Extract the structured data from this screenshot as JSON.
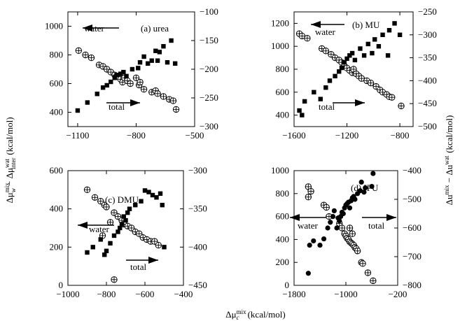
{
  "figure": {
    "xlabel": "Δμ",
    "xlabel_sup": "mix",
    "xlabel_sub": "c",
    "xlabel_units": "(kcal/mol)",
    "ylabel_left": "Δμ",
    "ylabel_left_sup1": "mix",
    "ylabel_left_sub1": "w",
    "ylabel_left_mid": " − Δμ",
    "ylabel_left_sup2": "wat",
    "ylabel_left_sub2": "inter",
    "ylabel_left_units": "(kcal/mol)",
    "ylabel_right": "Δu",
    "ylabel_right_sup1": "mix",
    "ylabel_right_mid": " − Δu",
    "ylabel_right_sup2": "wat",
    "ylabel_right_units": "(kcal/mol)"
  },
  "chart_data": [
    {
      "type": "scatter",
      "panel_label": "(a) urea",
      "xlim": [
        -1150,
        -500
      ],
      "xticks": [
        -1100,
        -800,
        -500
      ],
      "ylim_left": [
        300,
        1100
      ],
      "yticks_left": [
        400,
        600,
        800,
        1000
      ],
      "ylim_right": [
        -300,
        -100
      ],
      "yticks_right": [
        -300,
        -250,
        -200,
        -150,
        -100
      ],
      "water_label": "water",
      "water_arrow": "left",
      "total_label": "total",
      "total_arrow": "right",
      "series": [
        {
          "marker": "circle-cross",
          "axis": "left",
          "points": [
            [
              -1095,
              830
            ],
            [
              -1060,
              800
            ],
            [
              -1030,
              780
            ],
            [
              -990,
              730
            ],
            [
              -970,
              720
            ],
            [
              -950,
              700
            ],
            [
              -930,
              680
            ],
            [
              -910,
              660
            ],
            [
              -900,
              650
            ],
            [
              -880,
              630
            ],
            [
              -870,
              610
            ],
            [
              -860,
              640
            ],
            [
              -845,
              620
            ],
            [
              -830,
              600
            ],
            [
              -800,
              640
            ],
            [
              -785,
              590
            ],
            [
              -780,
              610
            ],
            [
              -760,
              560
            ],
            [
              -720,
              540
            ],
            [
              -700,
              550
            ],
            [
              -690,
              530
            ],
            [
              -660,
              510
            ],
            [
              -630,
              490
            ],
            [
              -610,
              480
            ],
            [
              -595,
              420
            ]
          ]
        },
        {
          "marker": "filled-square",
          "axis": "right",
          "points": [
            [
              -1100,
              -272
            ],
            [
              -1050,
              -258
            ],
            [
              -1000,
              -243
            ],
            [
              -970,
              -232
            ],
            [
              -950,
              -228
            ],
            [
              -930,
              -222
            ],
            [
              -910,
              -215
            ],
            [
              -900,
              -210
            ],
            [
              -880,
              -208
            ],
            [
              -865,
              -205
            ],
            [
              -850,
              -212
            ],
            [
              -820,
              -200
            ],
            [
              -790,
              -198
            ],
            [
              -780,
              -188
            ],
            [
              -760,
              -178
            ],
            [
              -740,
              -190
            ],
            [
              -720,
              -185
            ],
            [
              -700,
              -168
            ],
            [
              -690,
              -185
            ],
            [
              -680,
              -170
            ],
            [
              -660,
              -160
            ],
            [
              -640,
              -188
            ],
            [
              -620,
              -150
            ],
            [
              -600,
              -190
            ]
          ]
        }
      ]
    },
    {
      "type": "scatter",
      "panel_label": "(b) MU",
      "xlim": [
        -1600,
        -700
      ],
      "xticks": [
        -1600,
        -1200,
        -800
      ],
      "ylim_left": [
        300,
        1300
      ],
      "yticks_left": [
        400,
        600,
        800,
        1000,
        1200
      ],
      "ylim_right": [
        -500,
        -250
      ],
      "yticks_right": [
        -500,
        -450,
        -400,
        -350,
        -300,
        -250
      ],
      "water_label": "water",
      "water_arrow": "left",
      "total_label": "total",
      "total_arrow": "right",
      "series": [
        {
          "marker": "circle-cross",
          "axis": "left",
          "points": [
            [
              -1560,
              1110
            ],
            [
              -1540,
              1090
            ],
            [
              -1500,
              1070
            ],
            [
              -1390,
              980
            ],
            [
              -1360,
              960
            ],
            [
              -1320,
              930
            ],
            [
              -1290,
              900
            ],
            [
              -1260,
              880
            ],
            [
              -1240,
              860
            ],
            [
              -1220,
              830
            ],
            [
              -1200,
              810
            ],
            [
              -1180,
              790
            ],
            [
              -1160,
              770
            ],
            [
              -1150,
              800
            ],
            [
              -1130,
              760
            ],
            [
              -1110,
              740
            ],
            [
              -1090,
              720
            ],
            [
              -1050,
              700
            ],
            [
              -1020,
              680
            ],
            [
              -980,
              650
            ],
            [
              -950,
              620
            ],
            [
              -930,
              600
            ],
            [
              -900,
              580
            ],
            [
              -880,
              560
            ],
            [
              -860,
              555
            ],
            [
              -790,
              480
            ]
          ]
        },
        {
          "marker": "filled-square",
          "axis": "right",
          "points": [
            [
              -1560,
              -465
            ],
            [
              -1540,
              -475
            ],
            [
              -1520,
              -445
            ],
            [
              -1450,
              -425
            ],
            [
              -1400,
              -440
            ],
            [
              -1360,
              -415
            ],
            [
              -1330,
              -400
            ],
            [
              -1290,
              -390
            ],
            [
              -1260,
              -380
            ],
            [
              -1240,
              -372
            ],
            [
              -1220,
              -360
            ],
            [
              -1200,
              -352
            ],
            [
              -1180,
              -345
            ],
            [
              -1160,
              -340
            ],
            [
              -1140,
              -355
            ],
            [
              -1100,
              -330
            ],
            [
              -1070,
              -345
            ],
            [
              -1040,
              -320
            ],
            [
              -1010,
              -340
            ],
            [
              -990,
              -310
            ],
            [
              -960,
              -325
            ],
            [
              -930,
              -300
            ],
            [
              -890,
              -345
            ],
            [
              -880,
              -290
            ],
            [
              -840,
              -275
            ],
            [
              -800,
              -300
            ]
          ]
        }
      ]
    },
    {
      "type": "scatter",
      "panel_label": "(c) DMU",
      "xlim": [
        -1000,
        -400
      ],
      "xticks": [
        -1000,
        -800,
        -600,
        -400
      ],
      "ylim_left": [
        0,
        600
      ],
      "yticks_left": [
        0,
        200,
        400,
        600
      ],
      "ylim_right": [
        -450,
        -300
      ],
      "yticks_right": [
        -450,
        -400,
        -350,
        -300
      ],
      "water_label": "water",
      "water_arrow": "left",
      "total_label": "total",
      "total_arrow": "right",
      "series": [
        {
          "marker": "circle-cross",
          "axis": "left",
          "points": [
            [
              -900,
              500
            ],
            [
              -860,
              460
            ],
            [
              -830,
              440
            ],
            [
              -810,
              420
            ],
            [
              -800,
              410
            ],
            [
              -760,
              380
            ],
            [
              -740,
              360
            ],
            [
              -720,
              340
            ],
            [
              -710,
              320
            ],
            [
              -690,
              310
            ],
            [
              -670,
              300
            ],
            [
              -650,
              280
            ],
            [
              -630,
              270
            ],
            [
              -610,
              250
            ],
            [
              -590,
              240
            ],
            [
              -570,
              230
            ],
            [
              -550,
              230
            ],
            [
              -530,
              210
            ],
            [
              -820,
              260
            ],
            [
              -780,
              330
            ],
            [
              -760,
              30
            ]
          ]
        },
        {
          "marker": "filled-square",
          "axis": "right",
          "points": [
            [
              -900,
              -407
            ],
            [
              -870,
              -400
            ],
            [
              -830,
              -390
            ],
            [
              -810,
              -410
            ],
            [
              -800,
              -405
            ],
            [
              -780,
              -395
            ],
            [
              -760,
              -385
            ],
            [
              -740,
              -380
            ],
            [
              -730,
              -375
            ],
            [
              -720,
              -370
            ],
            [
              -710,
              -360
            ],
            [
              -700,
              -365
            ],
            [
              -690,
              -355
            ],
            [
              -680,
              -350
            ],
            [
              -650,
              -345
            ],
            [
              -620,
              -340
            ],
            [
              -600,
              -326
            ],
            [
              -580,
              -328
            ],
            [
              -560,
              -332
            ],
            [
              -540,
              -335
            ],
            [
              -520,
              -330
            ],
            [
              -510,
              -345
            ],
            [
              -500,
              -400
            ]
          ]
        }
      ]
    },
    {
      "type": "scatter",
      "panel_label": "(d) IPU",
      "xlim": [
        -1800,
        -200
      ],
      "xticks": [
        -1800,
        -1000,
        -200
      ],
      "ylim_left": [
        0,
        1000
      ],
      "yticks_left": [
        0,
        200,
        400,
        600,
        800,
        1000
      ],
      "ylim_right": [
        -800,
        -400
      ],
      "yticks_right": [
        -800,
        -700,
        -600,
        -500,
        -400
      ],
      "water_label": "water",
      "water_arrow": "left",
      "total_label": "total",
      "total_arrow": "right",
      "series": [
        {
          "marker": "circle-cross",
          "axis": "left",
          "points": [
            [
              -1580,
              860
            ],
            [
              -1540,
              820
            ],
            [
              -1580,
              770
            ],
            [
              -1340,
              700
            ],
            [
              -1300,
              680
            ],
            [
              -1260,
              600
            ],
            [
              -1100,
              540
            ],
            [
              -1060,
              500
            ],
            [
              -1020,
              450
            ],
            [
              -1000,
              430
            ],
            [
              -980,
              410
            ],
            [
              -960,
              400
            ],
            [
              -940,
              380
            ],
            [
              -920,
              370
            ],
            [
              -900,
              360
            ],
            [
              -880,
              350
            ],
            [
              -860,
              330
            ],
            [
              -840,
              320
            ],
            [
              -820,
              300
            ],
            [
              -760,
              200
            ],
            [
              -740,
              190
            ],
            [
              -660,
              110
            ],
            [
              -580,
              40
            ],
            [
              -900,
              450
            ],
            [
              -940,
              500
            ]
          ]
        },
        {
          "marker": "filled-circle",
          "axis": "right",
          "points": [
            [
              -1580,
              -758
            ],
            [
              -1560,
              -660
            ],
            [
              -1500,
              -645
            ],
            [
              -1400,
              -660
            ],
            [
              -1340,
              -638
            ],
            [
              -1280,
              -600
            ],
            [
              -1240,
              -580
            ],
            [
              -1200,
              -560
            ],
            [
              -1180,
              -540
            ],
            [
              -1140,
              -600
            ],
            [
              -1120,
              -565
            ],
            [
              -1100,
              -575
            ],
            [
              -1080,
              -560
            ],
            [
              -1060,
              -545
            ],
            [
              -1040,
              -550
            ],
            [
              -1020,
              -530
            ],
            [
              -1000,
              -520
            ],
            [
              -980,
              -515
            ],
            [
              -960,
              -510
            ],
            [
              -940,
              -530
            ],
            [
              -920,
              -505
            ],
            [
              -900,
              -495
            ],
            [
              -880,
              -490
            ],
            [
              -860,
              -500
            ],
            [
              -820,
              -480
            ],
            [
              -780,
              -470
            ],
            [
              -760,
              -440
            ],
            [
              -720,
              -475
            ],
            [
              -700,
              -460
            ],
            [
              -600,
              -455
            ],
            [
              -580,
              -410
            ]
          ]
        }
      ]
    }
  ]
}
